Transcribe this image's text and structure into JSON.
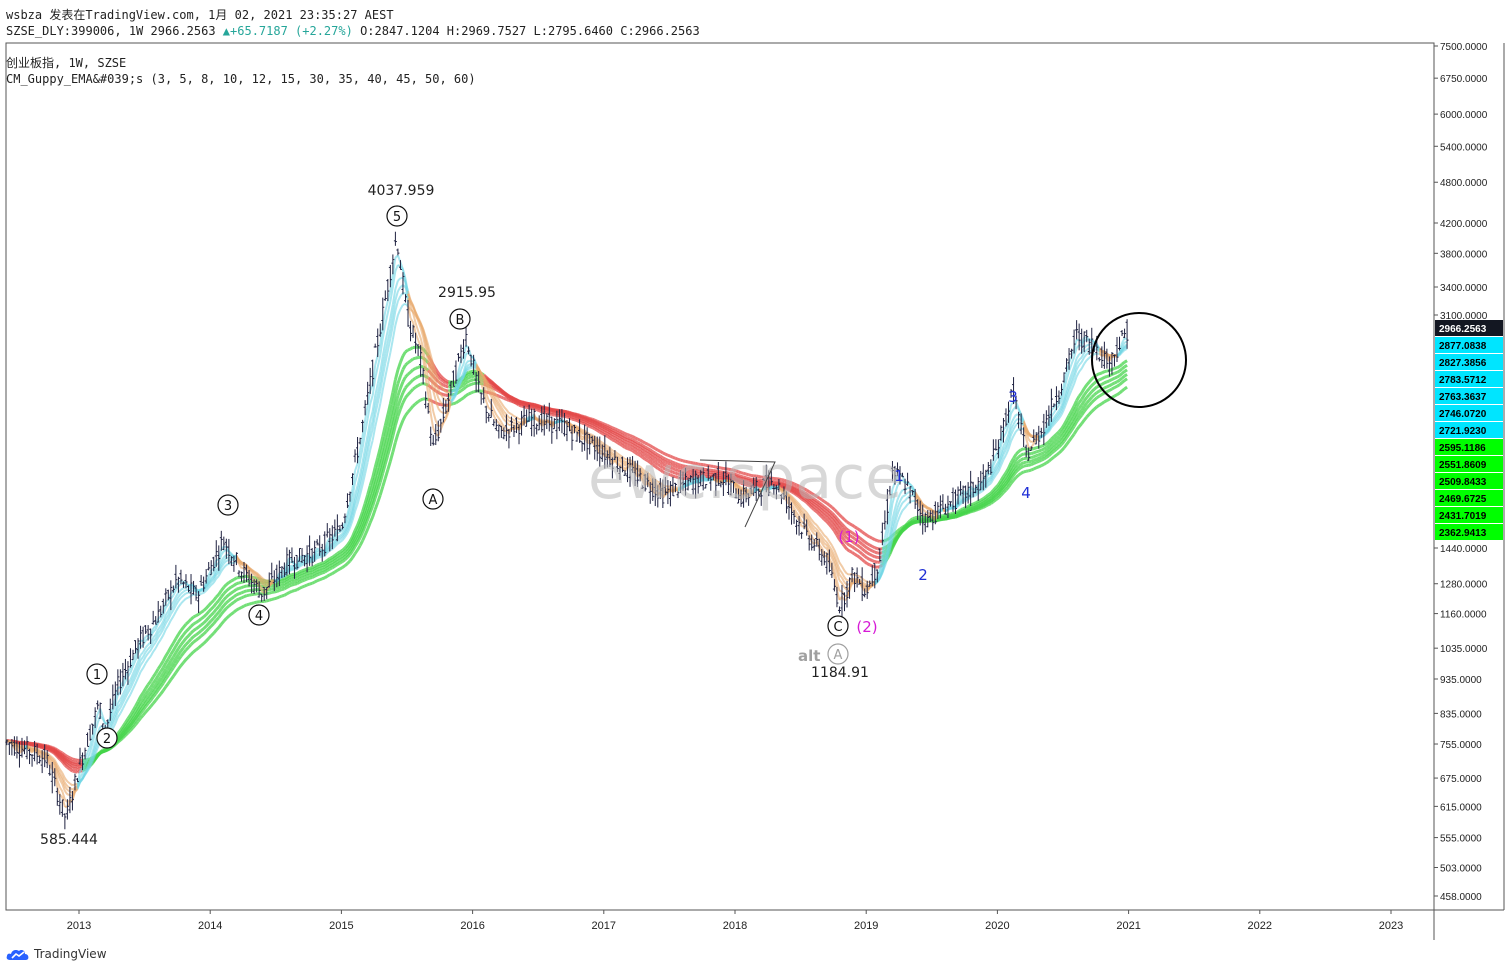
{
  "header": {
    "publish_line": "wsbza 发表在TradingView.com, 1月 02, 2021 23:35:27 AEST",
    "symbol": "SZSE_DLY:399006, 1W",
    "last": "2966.2563",
    "change": "+65.7187 (+2.27%)",
    "o": "O:2847.1204",
    "h": "H:2969.7527",
    "l": "L:2795.6460",
    "c": "C:2966.2563",
    "legend_main": "创业板指, 1W, SZSE",
    "legend_indicator": "CM_Guppy_EMA&#039;s (3, 5, 8, 10, 12, 15, 30, 35, 40, 45, 50, 60)"
  },
  "watermark": "ewc.space",
  "footer": {
    "brand": "TradingView"
  },
  "colors": {
    "candle": "#1e2140",
    "ema_fast_up": "#6fd6e4",
    "ema_fast_down": "#e8a86a",
    "ema_slow_up": "#44d44a",
    "ema_slow_down": "#e34848",
    "neutral": "#9a9a9a",
    "axis_text": "#222222",
    "wave_blue": "#1f2fd6",
    "wave_magenta": "#d61ad6"
  },
  "chart_data": {
    "type": "candlestick",
    "title": "创业板指, 1W, SZSE",
    "y_scale": "log",
    "ylim": [
      430,
      7800
    ],
    "xlim": [
      2012.45,
      2023.35
    ],
    "y_ticks": [
      "7500.0000",
      "6750.0000",
      "6000.0000",
      "5400.0000",
      "4800.0000",
      "4200.0000",
      "3800.0000",
      "3400.0000",
      "3100.0000",
      "1440.0000",
      "1280.0000",
      "1160.0000",
      "1035.0000",
      "935.0000",
      "835.0000",
      "755.0000",
      "675.0000",
      "615.0000",
      "555.0000",
      "503.0000",
      "458.0000"
    ],
    "x_ticks": [
      "2013",
      "2014",
      "2015",
      "2016",
      "2017",
      "2018",
      "2019",
      "2020",
      "2021",
      "2022",
      "2023"
    ],
    "last_price_label": "2966.2563",
    "ema_fast_labels": [
      "2877.0838",
      "2827.3856",
      "2783.5712",
      "2763.3637",
      "2746.0720",
      "2721.9230"
    ],
    "ema_slow_labels": [
      "2595.1186",
      "2551.8609",
      "2509.8433",
      "2469.6725",
      "2431.7019",
      "2362.9413"
    ],
    "price_path": [
      [
        2012.45,
        760
      ],
      [
        2012.6,
        740
      ],
      [
        2012.75,
        720
      ],
      [
        2012.9,
        590
      ],
      [
        2013.0,
        700
      ],
      [
        2013.15,
        860
      ],
      [
        2013.2,
        790
      ],
      [
        2013.3,
        920
      ],
      [
        2013.45,
        1050
      ],
      [
        2013.6,
        1150
      ],
      [
        2013.75,
        1300
      ],
      [
        2013.9,
        1230
      ],
      [
        2014.0,
        1350
      ],
      [
        2014.1,
        1480
      ],
      [
        2014.25,
        1330
      ],
      [
        2014.4,
        1240
      ],
      [
        2014.6,
        1380
      ],
      [
        2014.8,
        1420
      ],
      [
        2015.0,
        1540
      ],
      [
        2015.15,
        2100
      ],
      [
        2015.3,
        3000
      ],
      [
        2015.42,
        4030
      ],
      [
        2015.5,
        3100
      ],
      [
        2015.6,
        2700
      ],
      [
        2015.7,
        2000
      ],
      [
        2015.8,
        2300
      ],
      [
        2015.95,
        2900
      ],
      [
        2016.05,
        2400
      ],
      [
        2016.2,
        2100
      ],
      [
        2016.45,
        2200
      ],
      [
        2016.7,
        2150
      ],
      [
        2016.95,
        2000
      ],
      [
        2017.2,
        1850
      ],
      [
        2017.45,
        1720
      ],
      [
        2017.7,
        1800
      ],
      [
        2017.9,
        1820
      ],
      [
        2018.05,
        1700
      ],
      [
        2018.3,
        1800
      ],
      [
        2018.5,
        1550
      ],
      [
        2018.7,
        1380
      ],
      [
        2018.8,
        1190
      ],
      [
        2018.9,
        1320
      ],
      [
        2019.0,
        1250
      ],
      [
        2019.1,
        1380
      ],
      [
        2019.2,
        1850
      ],
      [
        2019.3,
        1780
      ],
      [
        2019.45,
        1580
      ],
      [
        2019.6,
        1650
      ],
      [
        2019.75,
        1720
      ],
      [
        2019.9,
        1800
      ],
      [
        2020.0,
        2000
      ],
      [
        2020.12,
        2420
      ],
      [
        2020.22,
        1950
      ],
      [
        2020.35,
        2150
      ],
      [
        2020.5,
        2500
      ],
      [
        2020.6,
        2900
      ],
      [
        2020.75,
        2800
      ],
      [
        2020.85,
        2650
      ],
      [
        2021.0,
        2966
      ]
    ],
    "annotations": {
      "peak": "4037.959",
      "trough": "585.444",
      "b_high": "2915.95",
      "c_low": "1184.91",
      "wave_1": "1",
      "wave_2": "2",
      "wave_3": "3",
      "wave_4": "4",
      "wave_5": "5",
      "wave_a": "A",
      "wave_b": "B",
      "wave_c": "C",
      "alt_label": "alt",
      "alt_wave": "A",
      "minor_1": "1",
      "minor_2": "2",
      "minor_3": "3",
      "minor_4": "4",
      "sub_1": "(1)",
      "sub_2": "(2)"
    }
  }
}
